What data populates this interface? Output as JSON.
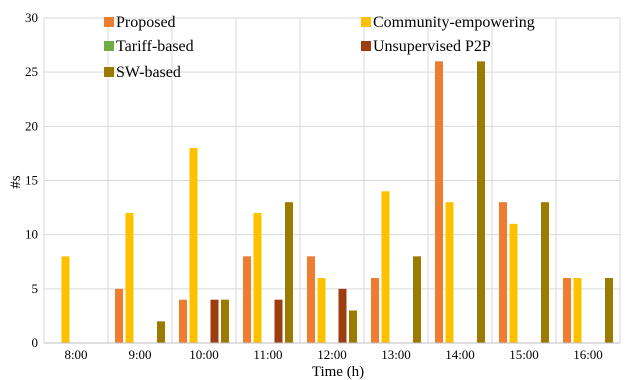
{
  "chart_data": {
    "type": "bar",
    "xlabel": "Time (h)",
    "ylabel": "#s",
    "ylim": [
      0,
      30
    ],
    "yticks": [
      0,
      5,
      10,
      15,
      20,
      25,
      30
    ],
    "grid": true,
    "legend_position": "top",
    "categories": [
      "8:00",
      "9:00",
      "10:00",
      "11:00",
      "12:00",
      "13:00",
      "14:00",
      "15:00",
      "16:00"
    ],
    "series": [
      {
        "name": "Proposed",
        "color": "#ed7d31",
        "values": [
          0,
          5,
          4,
          8,
          8,
          6,
          26,
          13,
          6
        ]
      },
      {
        "name": "Community-empowering",
        "color": "#ffc000",
        "values": [
          8,
          12,
          18,
          12,
          6,
          14,
          13,
          11,
          6
        ]
      },
      {
        "name": "Tariff-based",
        "color": "#70ad47",
        "values": [
          0,
          0,
          0,
          0,
          0,
          0,
          0,
          0,
          0
        ]
      },
      {
        "name": "Unsupervised P2P",
        "color": "#9e3d0f",
        "values": [
          0,
          0,
          4,
          4,
          5,
          0,
          0,
          0,
          0
        ]
      },
      {
        "name": "SW-based",
        "color": "#9c7a00",
        "values": [
          0,
          2,
          4,
          13,
          3,
          8,
          26,
          13,
          6
        ]
      }
    ]
  }
}
